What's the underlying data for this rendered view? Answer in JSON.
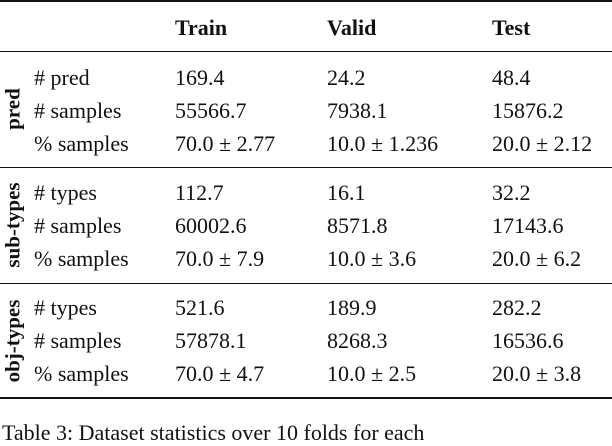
{
  "table": {
    "columns": [
      "",
      "",
      "Train",
      "Valid",
      "Test"
    ],
    "groups": [
      {
        "label": "pred",
        "rows": [
          {
            "metric": "# pred",
            "train": "169.4",
            "valid": "24.2",
            "test": "48.4"
          },
          {
            "metric": "# samples",
            "train": "55566.7",
            "valid": "7938.1",
            "test": "15876.2"
          },
          {
            "metric": "% samples",
            "train": "70.0 ± 2.77",
            "valid": "10.0 ± 1.236",
            "test": "20.0 ± 2.12"
          }
        ]
      },
      {
        "label": "sub-types",
        "rows": [
          {
            "metric": "# types",
            "train": "112.7",
            "valid": "16.1",
            "test": "32.2"
          },
          {
            "metric": "# samples",
            "train": "60002.6",
            "valid": "8571.8",
            "test": "17143.6"
          },
          {
            "metric": "% samples",
            "train": "70.0 ± 7.9",
            "valid": "10.0 ± 3.6",
            "test": "20.0 ± 6.2"
          }
        ]
      },
      {
        "label": "obj-types",
        "rows": [
          {
            "metric": "# types",
            "train": "521.6",
            "valid": "189.9",
            "test": "282.2"
          },
          {
            "metric": "# samples",
            "train": "57878.1",
            "valid": "8268.3",
            "test": "16536.6"
          },
          {
            "metric": "% samples",
            "train": "70.0 ± 4.7",
            "valid": "10.0 ± 2.5",
            "test": "20.0 ± 3.8"
          }
        ]
      }
    ]
  },
  "caption": "Table 3: Dataset statistics over 10 folds for each"
}
